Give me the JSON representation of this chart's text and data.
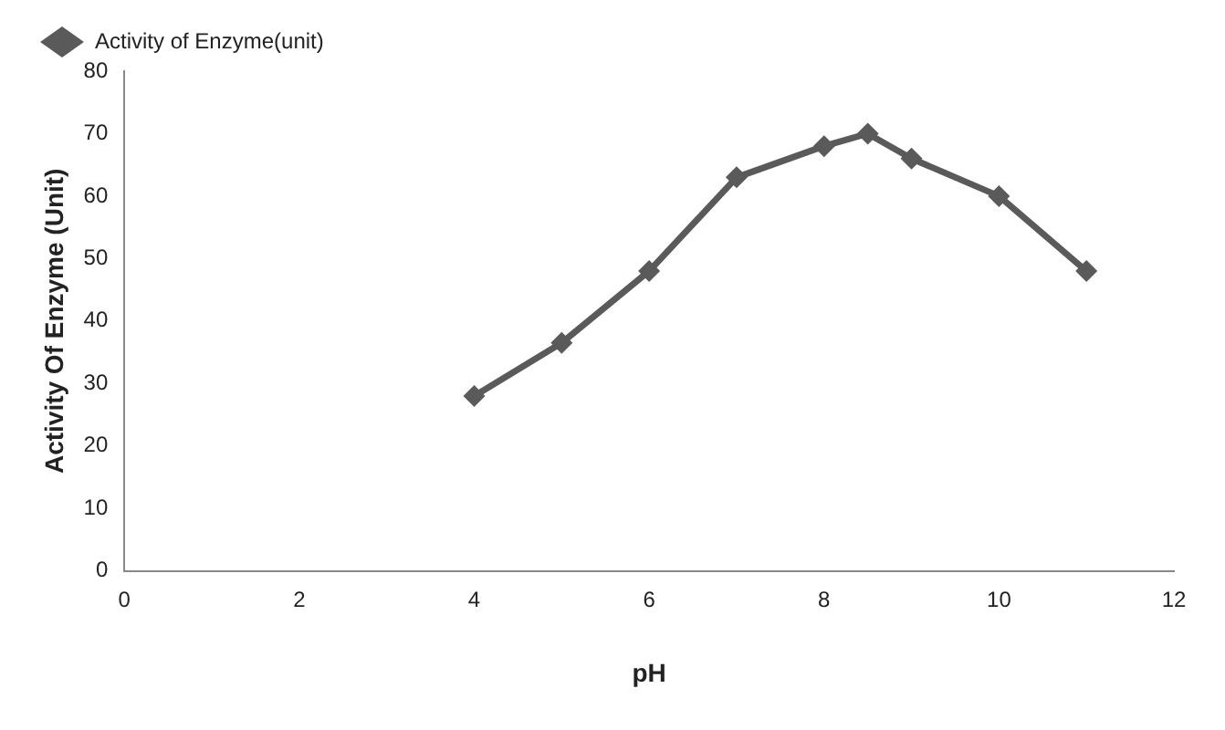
{
  "chart_data": {
    "type": "line",
    "xlabel": "pH",
    "ylabel": "Activity Of Enzyme (Unit)",
    "x": [
      4,
      5,
      6,
      7,
      8,
      8.5,
      9,
      10,
      11
    ],
    "series": [
      {
        "name": "Activity of Enzyme(unit)",
        "color": "#5a5a5a",
        "values": [
          28,
          36.5,
          48,
          63,
          68,
          70,
          66,
          60,
          48
        ]
      }
    ],
    "xlim": [
      0,
      12
    ],
    "xticks": [
      0,
      2,
      4,
      6,
      8,
      10,
      12
    ],
    "ylim": [
      0,
      80
    ],
    "yticks": [
      0,
      10,
      20,
      30,
      40,
      50,
      60,
      70,
      80
    ],
    "grid": false,
    "legend": "top left",
    "marker": "diamond",
    "line_style": "solid"
  }
}
